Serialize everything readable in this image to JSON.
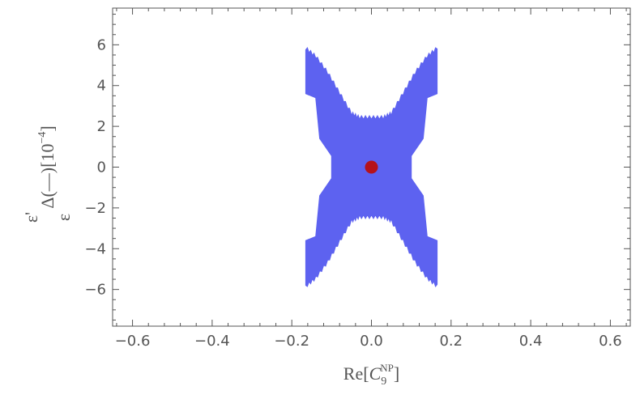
{
  "chart_data": {
    "type": "scatter",
    "xlabel": {
      "base": "Re[",
      "var": "C",
      "sub": "9",
      "sup": "NP",
      "close": "]"
    },
    "ylabel": {
      "delta": "Δ(",
      "num": "ε'",
      "frac": "—",
      "den": "ε",
      "unit": ")[10",
      "exp": "−4",
      "close": "]"
    },
    "xlim": [
      -0.65,
      0.65
    ],
    "ylim": [
      -7.8,
      7.8
    ],
    "x_ticks": [
      -0.6,
      -0.4,
      -0.2,
      0.0,
      0.2,
      0.4,
      0.6
    ],
    "x_tick_labels": [
      "−0.6",
      "−0.4",
      "−0.2",
      "0.0",
      "0.2",
      "0.4",
      "0.6"
    ],
    "y_ticks": [
      -6,
      -4,
      -2,
      0,
      2,
      4,
      6
    ],
    "y_tick_labels": [
      "−6",
      "−4",
      "−2",
      "0",
      "2",
      "4",
      "6"
    ],
    "series": [
      {
        "kind": "region",
        "color": "#5d62f0",
        "x_range": [
          -0.165,
          0.165
        ],
        "upper_boundary": [
          [
            -0.165,
            5.8
          ],
          [
            -0.14,
            5.4
          ],
          [
            -0.11,
            4.6
          ],
          [
            -0.08,
            3.6
          ],
          [
            -0.05,
            2.6
          ],
          [
            -0.03,
            2.4
          ],
          [
            0.0,
            2.4
          ],
          [
            0.03,
            2.4
          ],
          [
            0.05,
            2.6
          ],
          [
            0.08,
            3.6
          ],
          [
            0.11,
            4.6
          ],
          [
            0.14,
            5.4
          ],
          [
            0.165,
            5.8
          ]
        ],
        "inner_edge_x": [
          -0.14,
          0.14
        ],
        "inner_edge_y_range": [
          -3.6,
          3.6
        ],
        "notch_x": [
          -0.1,
          0.1
        ],
        "notch_y_range": [
          -0.55,
          0.55
        ]
      },
      {
        "kind": "point",
        "color": "#b5121b",
        "x": [
          0.0
        ],
        "y": [
          0.0
        ]
      }
    ],
    "frame": true,
    "grid": false
  }
}
